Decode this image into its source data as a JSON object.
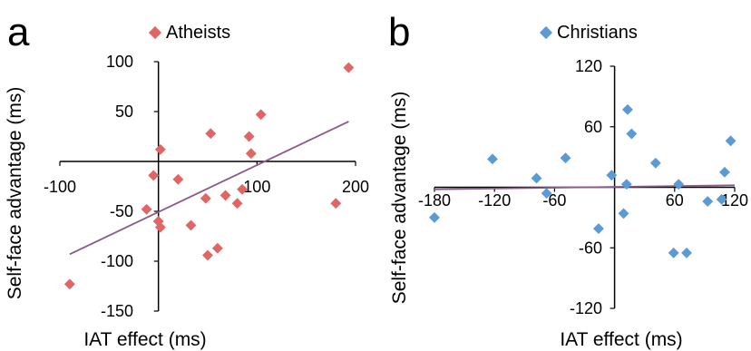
{
  "chart_data": [
    {
      "type": "scatter",
      "panel_label": "a",
      "title": "",
      "legend": "Atheists",
      "xlabel": "IAT effect (ms)",
      "ylabel": "Self-face advantage (ms)",
      "xlim": [
        -100,
        200
      ],
      "ylim": [
        -150,
        100
      ],
      "xticks": [
        -100,
        100,
        200
      ],
      "yticks": [
        -150,
        -100,
        -50,
        50,
        100
      ],
      "xtick_labels": [
        "-100",
        "100",
        "200"
      ],
      "ytick_labels": [
        "-150",
        "-100",
        "-50",
        "50",
        "100"
      ],
      "series": [
        {
          "name": "Atheists",
          "color": "#e06666",
          "marker": "diamond",
          "points": [
            [
              -90,
              -123
            ],
            [
              -12,
              -48
            ],
            [
              -5,
              -14
            ],
            [
              2,
              12
            ],
            [
              0,
              -60
            ],
            [
              2,
              -66
            ],
            [
              20,
              -18
            ],
            [
              33,
              -64
            ],
            [
              48,
              -37
            ],
            [
              50,
              -94
            ],
            [
              53,
              28
            ],
            [
              60,
              -87
            ],
            [
              68,
              -34
            ],
            [
              80,
              -42
            ],
            [
              85,
              -28
            ],
            [
              92,
              25
            ],
            [
              94,
              8
            ],
            [
              104,
              47
            ],
            [
              180,
              -42
            ],
            [
              193,
              94
            ]
          ]
        }
      ],
      "trendline": {
        "color": "#8a5a88",
        "points": [
          [
            -90,
            -93
          ],
          [
            193,
            40
          ]
        ]
      }
    },
    {
      "type": "scatter",
      "panel_label": "b",
      "title": "",
      "legend": "Christians",
      "xlabel": "IAT effect (ms)",
      "ylabel": "Self-face advantage (ms)",
      "xlim": [
        -180,
        120
      ],
      "ylim": [
        -120,
        120
      ],
      "xticks": [
        -180,
        -120,
        -60,
        60,
        120
      ],
      "yticks": [
        -120,
        -60,
        60,
        120
      ],
      "xtick_labels": [
        "-180",
        "-120",
        "-60",
        "60",
        "120"
      ],
      "ytick_labels": [
        "-120",
        "-60",
        "60",
        "120"
      ],
      "series": [
        {
          "name": "Christians",
          "color": "#5b9bd5",
          "marker": "diamond",
          "points": [
            [
              -180,
              -30
            ],
            [
              -122,
              28
            ],
            [
              -78,
              9
            ],
            [
              -68,
              -6
            ],
            [
              -49,
              29
            ],
            [
              -16,
              -41
            ],
            [
              -3,
              12
            ],
            [
              9,
              -26
            ],
            [
              12,
              3
            ],
            [
              13,
              77
            ],
            [
              17,
              53
            ],
            [
              41,
              24
            ],
            [
              59,
              -65
            ],
            [
              64,
              3
            ],
            [
              72,
              -65
            ],
            [
              93,
              -14
            ],
            [
              107,
              -12
            ],
            [
              110,
              15
            ],
            [
              116,
              46
            ]
          ]
        }
      ],
      "trendline": {
        "color": "#8a5a88",
        "points": [
          [
            -180,
            -2
          ],
          [
            120,
            2
          ]
        ]
      }
    }
  ]
}
